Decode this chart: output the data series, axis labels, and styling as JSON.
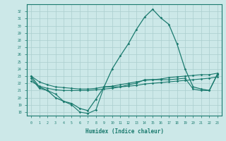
{
  "xlabel": "Humidex (Indice chaleur)",
  "x": [
    0,
    1,
    2,
    3,
    4,
    5,
    6,
    7,
    8,
    9,
    10,
    11,
    12,
    13,
    14,
    15,
    16,
    17,
    18,
    19,
    20,
    21,
    22,
    23
  ],
  "line_max": [
    23.0,
    21.5,
    21.0,
    20.0,
    19.5,
    19.2,
    18.5,
    18.2,
    19.8,
    21.5,
    24.0,
    25.8,
    27.5,
    29.5,
    31.2,
    32.3,
    31.1,
    30.2,
    27.5,
    24.0,
    21.5,
    21.2,
    21.0,
    23.3
  ],
  "line_upper_avg": [
    23.0,
    22.2,
    21.8,
    21.5,
    21.4,
    21.3,
    21.2,
    21.2,
    21.3,
    21.5,
    21.6,
    21.8,
    22.0,
    22.2,
    22.4,
    22.5,
    22.6,
    22.8,
    22.9,
    23.0,
    23.1,
    23.2,
    23.2,
    23.4
  ],
  "line_lower_avg": [
    22.3,
    21.6,
    21.3,
    21.1,
    21.0,
    21.0,
    21.0,
    21.0,
    21.1,
    21.2,
    21.3,
    21.5,
    21.6,
    21.7,
    21.9,
    22.0,
    22.1,
    22.2,
    22.3,
    22.4,
    22.5,
    22.6,
    22.7,
    22.9
  ],
  "line_min": [
    22.7,
    21.3,
    21.0,
    20.5,
    19.5,
    19.0,
    18.0,
    17.8,
    18.3,
    21.5,
    21.5,
    21.5,
    21.8,
    22.0,
    22.5,
    22.5,
    22.5,
    22.5,
    22.6,
    22.7,
    21.2,
    21.0,
    21.0,
    23.2
  ],
  "color": "#1a7a6e",
  "bg_color": "#cce8e8",
  "grid_color": "#aacece",
  "ylim": [
    17.5,
    33
  ],
  "yticks": [
    18,
    19,
    20,
    21,
    22,
    23,
    24,
    25,
    26,
    27,
    28,
    29,
    30,
    31,
    32
  ],
  "xticks": [
    0,
    1,
    2,
    3,
    4,
    5,
    6,
    7,
    8,
    9,
    10,
    11,
    12,
    13,
    14,
    15,
    16,
    17,
    18,
    19,
    20,
    21,
    22,
    23
  ]
}
